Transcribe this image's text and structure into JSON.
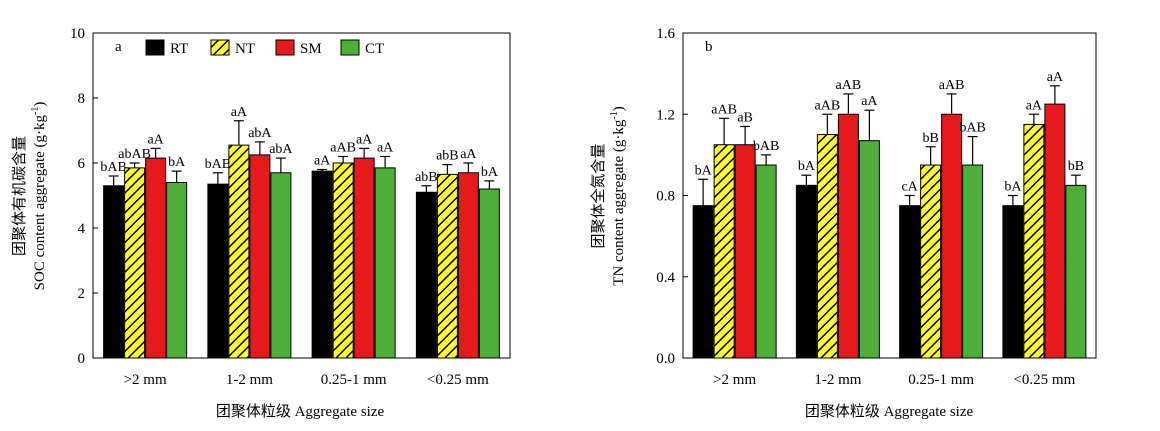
{
  "chart_data": [
    {
      "type": "bar",
      "panel_label": "a",
      "categories": [
        ">2 mm",
        "1-2 mm",
        "0.25-1 mm",
        "<0.25 mm"
      ],
      "xlabel": "团聚体粒级 Aggregate size",
      "ylabel_cn": "团聚体有机碳含量",
      "ylabel_en": "SOC content aggregate (g·kg",
      "ylabel_sup": "-1",
      "ylabel_end": ")",
      "ylim": [
        0,
        10
      ],
      "yticks": [
        "0",
        "2",
        "4",
        "6",
        "8",
        "10"
      ],
      "ytick_values": [
        0,
        2,
        4,
        6,
        8,
        10
      ],
      "legend": [
        "RT",
        "NT",
        "SM",
        "CT"
      ],
      "legend_position": "top",
      "series": [
        {
          "name": "RT",
          "values": [
            5.3,
            5.35,
            5.75,
            5.1
          ],
          "errors": [
            0.3,
            0.35,
            0.05,
            0.2
          ],
          "labels": [
            "bAB",
            "bAB",
            "aA",
            "abB"
          ]
        },
        {
          "name": "NT",
          "values": [
            5.85,
            6.55,
            6.0,
            5.65
          ],
          "errors": [
            0.15,
            0.75,
            0.2,
            0.3
          ],
          "labels": [
            "abAB",
            "aA",
            "aAB",
            "abB"
          ]
        },
        {
          "name": "SM",
          "values": [
            6.15,
            6.25,
            6.15,
            5.7
          ],
          "errors": [
            0.3,
            0.4,
            0.3,
            0.3
          ],
          "labels": [
            "aA",
            "abA",
            "aA",
            "aA"
          ]
        },
        {
          "name": "CT",
          "values": [
            5.4,
            5.7,
            5.85,
            5.2
          ],
          "errors": [
            0.35,
            0.45,
            0.35,
            0.25
          ],
          "labels": [
            "bA",
            "abA",
            "aA",
            "bA"
          ]
        }
      ]
    },
    {
      "type": "bar",
      "panel_label": "b",
      "categories": [
        ">2 mm",
        "1-2 mm",
        "0.25-1 mm",
        "<0.25 mm"
      ],
      "xlabel": "团聚体粒级 Aggregate size",
      "ylabel_cn": "团聚体全氮含量",
      "ylabel_en": "TN content aggregate (g·kg",
      "ylabel_sup": "-1",
      "ylabel_end": ")",
      "ylim": [
        0,
        1.6
      ],
      "yticks": [
        "0.0",
        "0.4",
        "0.8",
        "1.2",
        "1.6"
      ],
      "ytick_values": [
        0,
        0.4,
        0.8,
        1.2,
        1.6
      ],
      "series": [
        {
          "name": "RT",
          "values": [
            0.75,
            0.85,
            0.75,
            0.75
          ],
          "errors": [
            0.13,
            0.05,
            0.05,
            0.05
          ],
          "labels": [
            "bA",
            "bA",
            "cA",
            "bA"
          ]
        },
        {
          "name": "NT",
          "values": [
            1.05,
            1.1,
            0.95,
            1.15
          ],
          "errors": [
            0.13,
            0.1,
            0.09,
            0.05
          ],
          "labels": [
            "aAB",
            "aAB",
            "bB",
            "aA"
          ]
        },
        {
          "name": "SM",
          "values": [
            1.05,
            1.2,
            1.2,
            1.25
          ],
          "errors": [
            0.09,
            0.1,
            0.1,
            0.09
          ],
          "labels": [
            "aB",
            "aAB",
            "aAB",
            "aA"
          ]
        },
        {
          "name": "CT",
          "values": [
            0.95,
            1.07,
            0.95,
            0.85
          ],
          "errors": [
            0.05,
            0.15,
            0.14,
            0.05
          ],
          "labels": [
            "bAB",
            "aA",
            "bAB",
            "bB"
          ]
        }
      ]
    }
  ],
  "styles": {
    "RT": {
      "fill": "#000000",
      "pattern": "none"
    },
    "NT": {
      "fill": "#ffff33",
      "pattern": "hatch"
    },
    "SM": {
      "fill": "#e41a1c",
      "pattern": "none"
    },
    "CT": {
      "fill": "#4daf3a",
      "pattern": "none"
    }
  }
}
